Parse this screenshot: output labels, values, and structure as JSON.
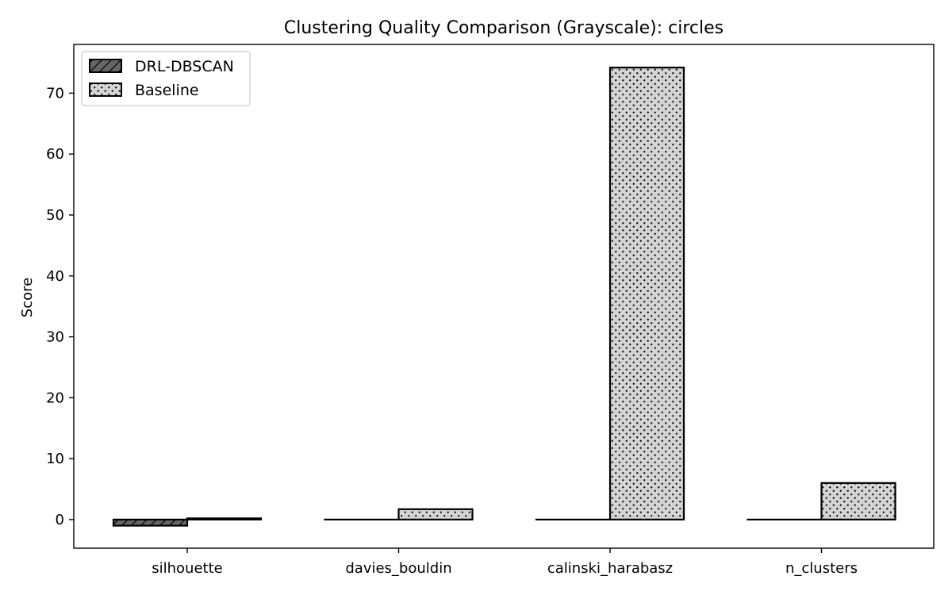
{
  "chart_data": {
    "type": "bar",
    "title": "Clustering Quality Comparison (Grayscale): circles",
    "xlabel": "",
    "ylabel": "Score",
    "categories": [
      "silhouette",
      "davies_bouldin",
      "calinski_harabasz",
      "n_clusters"
    ],
    "series": [
      {
        "name": "DRL-DBSCAN",
        "values": [
          -1.0,
          0,
          0,
          0
        ],
        "color": "#666666",
        "hatch": "diagonal"
      },
      {
        "name": "Baseline",
        "values": [
          0.2,
          1.7,
          74.2,
          6.0
        ],
        "color": "#d3d3d3",
        "hatch": "dots"
      }
    ],
    "ylim": [
      -4.7,
      78
    ],
    "yticks": [
      0,
      10,
      20,
      30,
      40,
      50,
      60,
      70
    ],
    "grid": false,
    "legend_position": "top-left"
  }
}
